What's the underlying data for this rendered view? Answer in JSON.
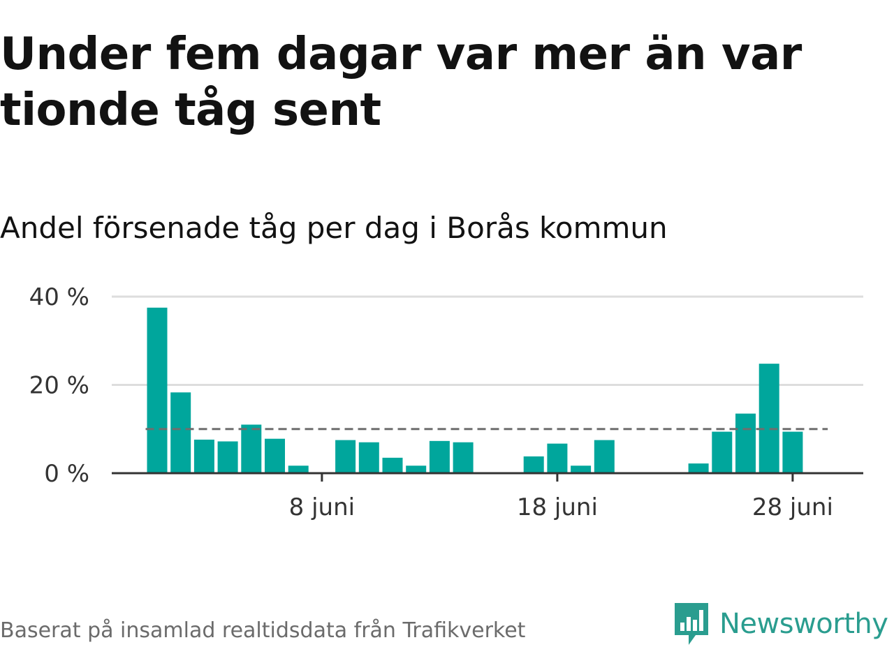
{
  "title": "Under fem dagar var mer än var tionde tåg sent",
  "subtitle": "Andel försenade tåg per dag i Borås kommun",
  "source": "Baserat på insamlad realtidsdata från Trafikverket",
  "brand": {
    "name": "Newsworthy",
    "color": "#2a9d8f"
  },
  "colors": {
    "bar": "#00a69c",
    "grid": "#dddddd",
    "axis": "#333333",
    "reference": "#6e6e6e"
  },
  "chart_data": {
    "type": "bar",
    "title": "Andel försenade tåg per dag i Borås kommun",
    "xlabel": "",
    "ylabel": "",
    "unit": "%",
    "ylim": [
      0,
      40
    ],
    "y_ticks": [
      0,
      20,
      40
    ],
    "y_tick_labels": [
      "0 %",
      "20 %",
      "40 %"
    ],
    "x_tick_days": [
      8,
      18,
      28
    ],
    "x_tick_labels": [
      "8 juni",
      "18 juni",
      "28 juni"
    ],
    "reference_line": 10,
    "grid": true,
    "days": [
      1,
      2,
      3,
      4,
      5,
      6,
      7,
      8,
      9,
      10,
      11,
      12,
      13,
      14,
      15,
      16,
      17,
      18,
      19,
      20,
      21,
      22,
      23,
      24,
      25,
      26,
      27,
      28,
      29,
      30
    ],
    "values": [
      37.5,
      18.3,
      7.6,
      7.2,
      11.0,
      7.8,
      1.7,
      null,
      7.5,
      7.0,
      3.5,
      1.7,
      7.3,
      7.0,
      null,
      null,
      3.8,
      6.7,
      1.7,
      7.5,
      null,
      null,
      null,
      2.2,
      9.4,
      13.5,
      24.8,
      9.4,
      null,
      null
    ]
  }
}
